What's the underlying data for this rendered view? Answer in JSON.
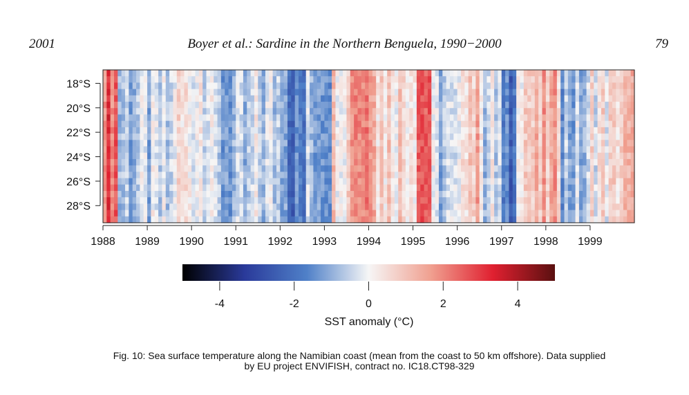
{
  "header": {
    "year": "2001",
    "title": "Boyer et al.: Sardine in the Northern Benguela, 1990−2000",
    "page_number": "79"
  },
  "chart_data": {
    "type": "heatmap",
    "title": "",
    "xlabel": "",
    "ylabel": "",
    "x_ticks": [
      "1988",
      "1989",
      "1990",
      "1991",
      "1992",
      "1993",
      "1994",
      "1995",
      "1996",
      "1997",
      "1998",
      "1999"
    ],
    "y_ticks": [
      "18°S",
      "20°S",
      "22°S",
      "24°S",
      "26°S",
      "28°S"
    ],
    "x_range": [
      1988,
      2000
    ],
    "y_range_deg_south": [
      16.9,
      29.4
    ],
    "colorbar": {
      "title": "SST anomaly (°C)",
      "ticks": [
        "-4",
        "-2",
        "0",
        "2",
        "4"
      ],
      "range": [
        -5,
        5
      ],
      "colors": [
        "#000000",
        "#2a3a9a",
        "#4f80c8",
        "#f6f6f6",
        "#f0a090",
        "#e02030",
        "#5a1010"
      ]
    },
    "anomaly_by_period": [
      {
        "period": "1988.00-1988.30",
        "anomaly": 3.0
      },
      {
        "period": "1988.30-1989.60",
        "anomaly": -0.8
      },
      {
        "period": "1989.60-1990.50",
        "anomaly": 0.3
      },
      {
        "period": "1990.50-1991.30",
        "anomaly": -1.2
      },
      {
        "period": "1991.30-1992.20",
        "anomaly": -0.6
      },
      {
        "period": "1992.20-1992.60",
        "anomaly": -2.2
      },
      {
        "period": "1992.60-1993.20",
        "anomaly": -1.0
      },
      {
        "period": "1993.20-1993.60",
        "anomaly": 0.8
      },
      {
        "period": "1993.60-1994.20",
        "anomaly": 2.6
      },
      {
        "period": "1994.20-1994.80",
        "anomaly": 0.9
      },
      {
        "period": "1994.80-1995.10",
        "anomaly": 1.0
      },
      {
        "period": "1995.10-1995.40",
        "anomaly": 3.2
      },
      {
        "period": "1995.40-1996.10",
        "anomaly": -0.8
      },
      {
        "period": "1996.10-1996.60",
        "anomaly": 1.2
      },
      {
        "period": "1996.60-1997.00",
        "anomaly": -0.5
      },
      {
        "period": "1997.00-1997.35",
        "anomaly": -2.5
      },
      {
        "period": "1997.35-1997.90",
        "anomaly": 1.0
      },
      {
        "period": "1997.90-1998.30",
        "anomaly": 1.3
      },
      {
        "period": "1998.30-1999.00",
        "anomaly": -1.0
      },
      {
        "period": "1999.00-1999.60",
        "anomaly": 0.4
      },
      {
        "period": "1999.60-2000.00",
        "anomaly": 1.0
      }
    ]
  },
  "caption": {
    "line1": "Fig. 10: Sea surface temperature along the Namibian coast (mean from the coast to 50 km offshore). Data supplied",
    "line2": "by EU project ENVIFISH, contract no. IC18.CT98-329"
  }
}
